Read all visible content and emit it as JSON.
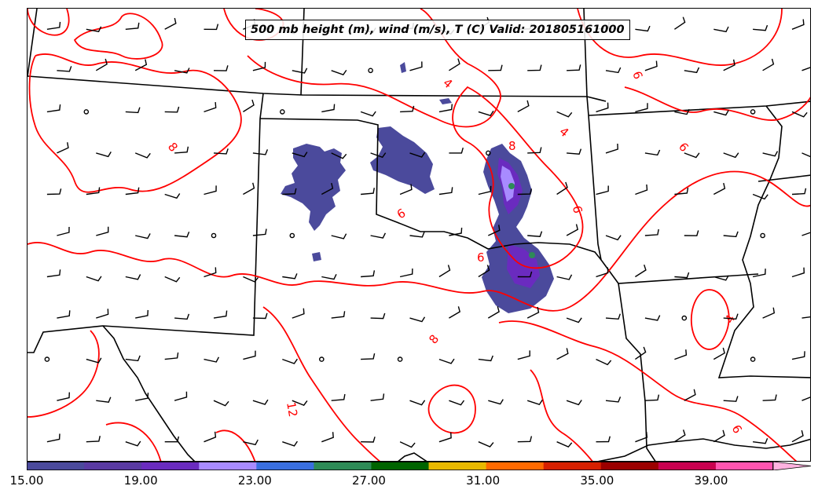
{
  "title": "500 mb height (m), wind (m/s), T (C) Valid: 201805161000",
  "contour_labels": [
    "4",
    "6",
    "8",
    "12"
  ],
  "colorbar": {
    "tick_labels": [
      "15.00",
      "19.00",
      "23.00",
      "27.00",
      "31.00",
      "35.00",
      "39.00"
    ],
    "tick_values": [
      15,
      19,
      23,
      27,
      31,
      35,
      39
    ],
    "range": [
      15,
      42.5
    ],
    "extend": "max",
    "colors": [
      "#4b4a9c",
      "#5a3aa3",
      "#6a2bbf",
      "#a88bff",
      "#3a6fe0",
      "#2e8b57",
      "#006400",
      "#e8b800",
      "#ff6a00",
      "#d62000",
      "#9b0000",
      "#c8004f",
      "#ff55b0",
      "#ffb3e0"
    ]
  },
  "colors": {
    "contour": "#ff0000",
    "borders": "#000000",
    "shading": "#4b4a9c"
  }
}
